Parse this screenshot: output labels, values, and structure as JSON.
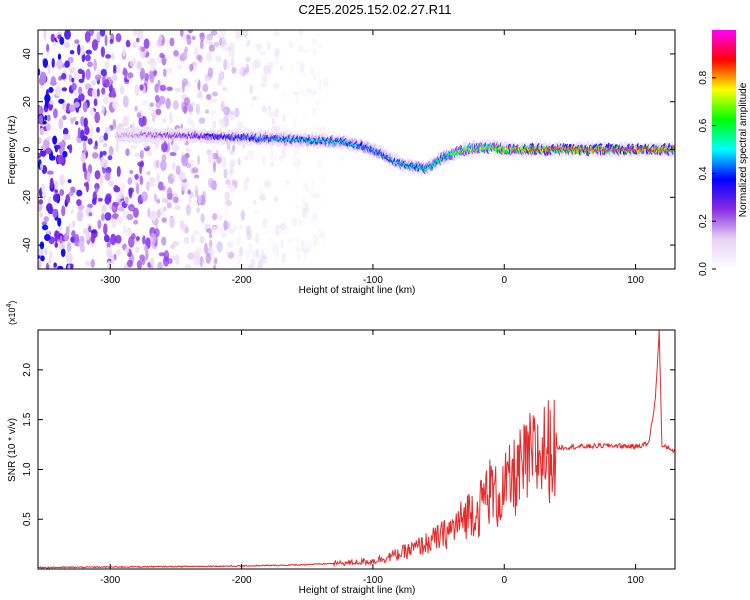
{
  "title": "C2E5.2025.152.02.27.R11",
  "chart_data": [
    {
      "type": "heatmap",
      "title": "C2E5.2025.152.02.27.R11",
      "xlabel": "Height of straight line (km)",
      "ylabel": "Frequency (Hz)",
      "xlim": [
        -355,
        130
      ],
      "ylim": [
        -50,
        50
      ],
      "xticks": [
        -300,
        -200,
        -100,
        0,
        100
      ],
      "yticks": [
        -40,
        -20,
        0,
        20,
        40
      ],
      "colorbar": {
        "label": "Normalized spectral amplitude",
        "range": [
          0,
          1
        ],
        "ticks": [
          "0.0",
          "0.2",
          "0.4",
          "0.6",
          "0.8"
        ],
        "colors": [
          "#ffffff",
          "#e6d2f5",
          "#8a2be2",
          "#0000ff",
          "#00ffff",
          "#00ff00",
          "#ffff00",
          "#ff0000",
          "#ff00ff"
        ]
      },
      "ridge": {
        "x": [
          -355,
          -300,
          -250,
          -200,
          -150,
          -120,
          -100,
          -80,
          -60,
          -45,
          -30,
          -10,
          0,
          30,
          60,
          100,
          130
        ],
        "frequency": [
          7,
          6,
          6,
          5,
          4,
          3,
          0,
          -6,
          -8,
          -3,
          0,
          1,
          0,
          0,
          0,
          0,
          0
        ],
        "peak_amplitude": [
          0.1,
          0.15,
          0.25,
          0.4,
          0.5,
          0.5,
          0.45,
          0.5,
          0.55,
          0.6,
          0.7,
          0.75,
          0.8,
          0.85,
          0.9,
          0.95,
          0.85
        ]
      },
      "noise_region_x": [
        -355,
        -135
      ]
    },
    {
      "type": "line",
      "xlabel": "Height of straight line (km)",
      "ylabel": "SNR (10 * v/v)",
      "y_multiplier": "(x10",
      "y_multiplier_exp": "4",
      "y_multiplier_close": ")",
      "xlim": [
        -355,
        130
      ],
      "ylim": [
        0,
        24000
      ],
      "xticks": [
        -300,
        -200,
        -100,
        0,
        100
      ],
      "yticks": [
        5000,
        10000,
        15000,
        20000
      ],
      "ytick_labels": [
        "0.5",
        "1.0",
        "1.5",
        "2.0"
      ],
      "color": "#e8292a",
      "series": [
        {
          "x": [
            -355,
            -300,
            -250,
            -200,
            -160,
            -140,
            -120,
            -100,
            -80,
            -60,
            -45,
            -35,
            -25,
            -20,
            -15,
            -10,
            -5,
            0,
            10,
            20,
            30,
            40,
            60,
            80,
            100,
            110,
            115,
            118,
            120,
            125,
            130
          ],
          "values": [
            150,
            200,
            250,
            300,
            400,
            500,
            600,
            800,
            1500,
            2500,
            3500,
            4500,
            6000,
            5500,
            7500,
            8000,
            7000,
            8000,
            9500,
            11000,
            11800,
            12200,
            12300,
            12400,
            12300,
            12600,
            17000,
            24000,
            12300,
            12200,
            11800
          ]
        }
      ]
    }
  ]
}
